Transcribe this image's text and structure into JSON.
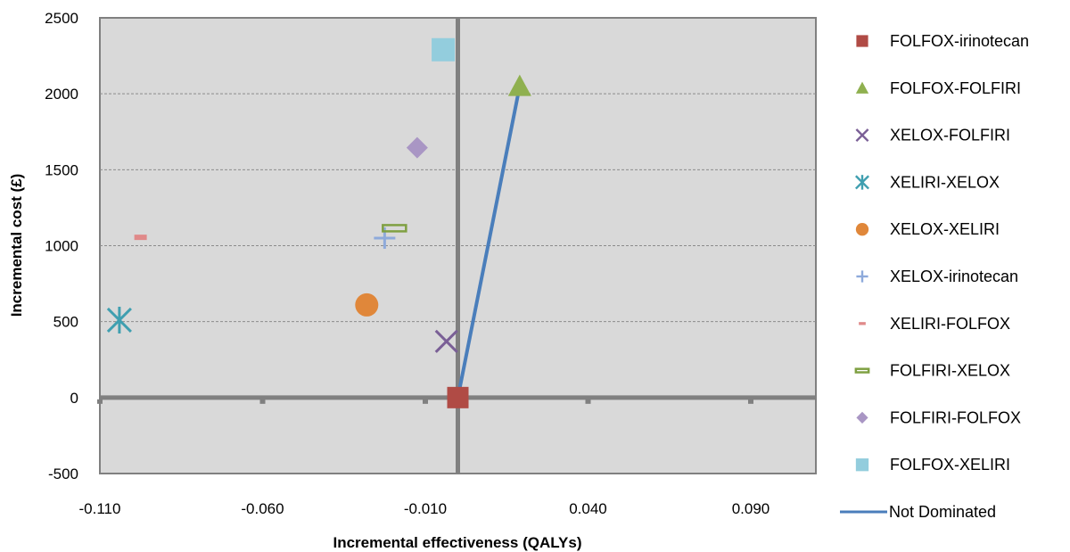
{
  "chart_data": {
    "type": "scatter",
    "title": "",
    "xlabel": "Incremental effectiveness (QALYs)",
    "ylabel": "Incremental cost (£)",
    "xlim": [
      -0.11,
      0.11
    ],
    "ylim": [
      -500,
      2500
    ],
    "x_ticks": [
      -0.11,
      -0.06,
      -0.01,
      0.04,
      0.09
    ],
    "x_tick_labels": [
      "-0.110",
      "-0.060",
      "-0.010",
      "0.040",
      "0.090"
    ],
    "y_ticks": [
      -500,
      0,
      500,
      1000,
      1500,
      2000,
      2500
    ],
    "y_tick_labels": [
      "-500",
      "0",
      "500",
      "1000",
      "1500",
      "2000",
      "2500"
    ],
    "grid": "horizontal dashed",
    "plot_background": "#d9d9d9",
    "legend_position": "right",
    "series": [
      {
        "name": "FOLFOX-irinotecan",
        "marker": "square",
        "color": "#b04b45",
        "x": 0.0,
        "y": 0
      },
      {
        "name": "FOLFOX-FOLFIRI",
        "marker": "triangle",
        "color": "#8fb04f",
        "x": 0.019,
        "y": 2050
      },
      {
        "name": "XELOX-FOLFIRI",
        "marker": "x",
        "color": "#7a5f96",
        "x": -0.0035,
        "y": 370
      },
      {
        "name": "XELIRI-XELOX",
        "marker": "star",
        "color": "#3f9fb0",
        "x": -0.104,
        "y": 510
      },
      {
        "name": "XELOX-XELIRI",
        "marker": "circle",
        "color": "#e0873a",
        "x": -0.028,
        "y": 610
      },
      {
        "name": "XELOX-irinotecan",
        "marker": "plus",
        "color": "#8eaadb",
        "x": -0.0225,
        "y": 1050
      },
      {
        "name": "XELIRI-FOLFOX",
        "marker": "dash",
        "color": "#e08a8a",
        "x": -0.0975,
        "y": 1055
      },
      {
        "name": "FOLFIRI-XELOX",
        "marker": "bar",
        "color": "#7fa042",
        "x": -0.0195,
        "y": 1115
      },
      {
        "name": "FOLFIRI-FOLFOX",
        "marker": "diamond",
        "color": "#a996c4",
        "x": -0.0125,
        "y": 1645
      },
      {
        "name": "FOLFOX-XELIRI",
        "marker": "square-large",
        "color": "#93cddd",
        "x": -0.0045,
        "y": 2290
      }
    ],
    "frontier": {
      "name": "Not Dominated",
      "color": "#4a7ebb",
      "x": [
        0.0,
        0.019
      ],
      "y": [
        0,
        2050
      ]
    }
  }
}
